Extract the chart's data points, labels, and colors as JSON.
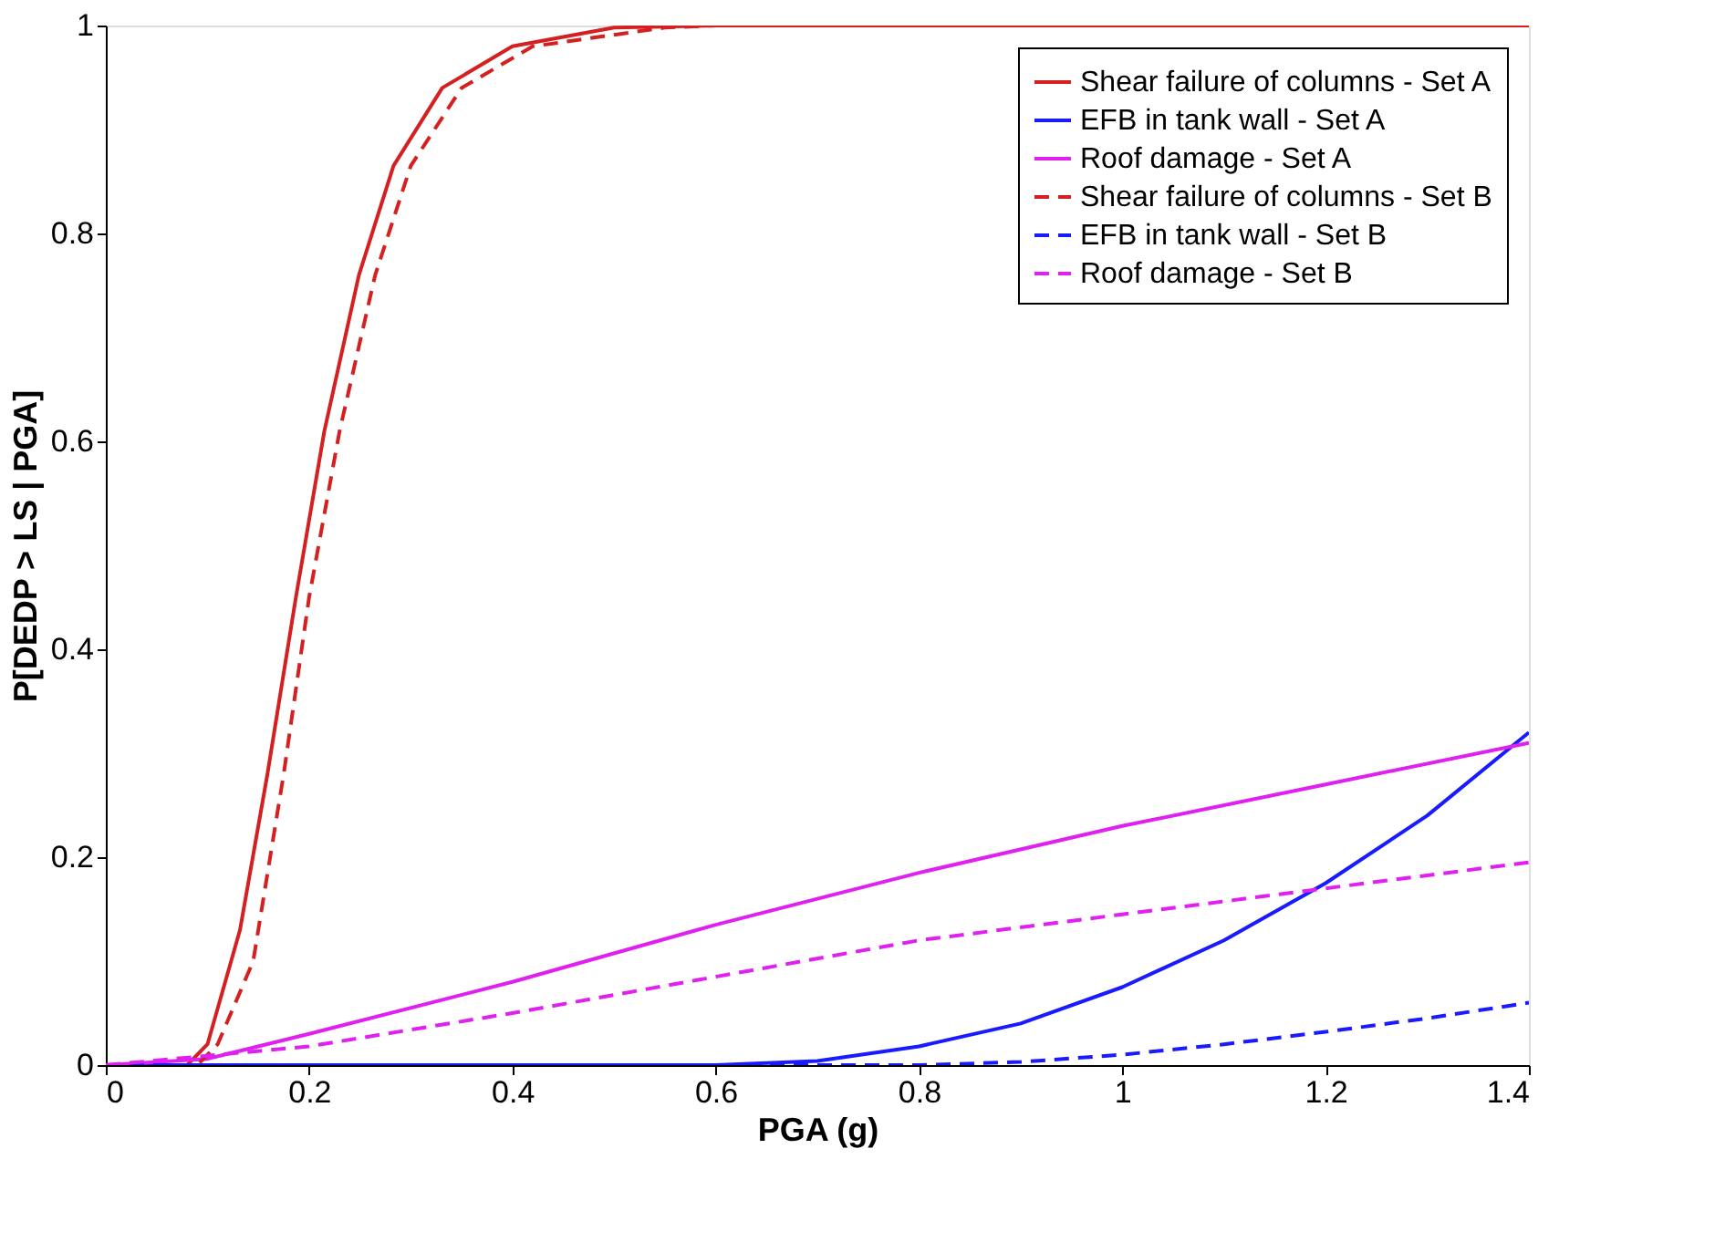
{
  "chart_data": {
    "type": "line",
    "xlabel": "PGA (g)",
    "ylabel": "P[DEDP > LS | PGA]",
    "xlim": [
      0,
      1.4
    ],
    "ylim": [
      0,
      1
    ],
    "xticks": [
      0,
      0.2,
      0.4,
      0.6,
      0.8,
      1,
      1.2,
      1.4
    ],
    "yticks": [
      0,
      0.2,
      0.4,
      0.6,
      0.8,
      1
    ],
    "grid": false,
    "legend": "top right",
    "series": [
      {
        "name": "Shear failure of columns - Set A",
        "color": "#d42020",
        "line_style": "solid",
        "x": [
          0,
          0.08,
          0.1,
          0.132,
          0.159,
          0.187,
          0.215,
          0.249,
          0.283,
          0.331,
          0.4,
          0.5,
          0.6,
          0.8,
          1.0,
          1.2,
          1.4
        ],
        "values": [
          0,
          0,
          0.02,
          0.13,
          0.28,
          0.45,
          0.61,
          0.76,
          0.865,
          0.94,
          0.98,
          0.998,
          1,
          1,
          1,
          1,
          1
        ]
      },
      {
        "name": "EFB in tank wall - Set A",
        "color": "#1a1aff",
        "line_style": "solid",
        "x": [
          0,
          0.2,
          0.4,
          0.6,
          0.7,
          0.8,
          0.9,
          1.0,
          1.1,
          1.2,
          1.3,
          1.4
        ],
        "values": [
          0,
          0,
          0,
          0,
          0.004,
          0.018,
          0.04,
          0.075,
          0.12,
          0.175,
          0.24,
          0.32
        ]
      },
      {
        "name": "Roof damage - Set A",
        "color": "#e020f0",
        "line_style": "solid",
        "x": [
          0,
          0.1,
          0.2,
          0.4,
          0.6,
          0.8,
          1.0,
          1.2,
          1.4
        ],
        "values": [
          0,
          0.006,
          0.03,
          0.08,
          0.135,
          0.185,
          0.23,
          0.27,
          0.31
        ]
      },
      {
        "name": "Shear failure of columns - Set B",
        "color": "#d42020",
        "line_style": "dashed",
        "x": [
          0,
          0.09,
          0.11,
          0.145,
          0.175,
          0.2,
          0.23,
          0.265,
          0.3,
          0.35,
          0.42,
          0.55,
          0.6,
          0.8,
          1.0,
          1.2,
          1.4
        ],
        "values": [
          0,
          0,
          0.02,
          0.1,
          0.28,
          0.45,
          0.61,
          0.76,
          0.865,
          0.94,
          0.98,
          0.998,
          1,
          1,
          1,
          1,
          1
        ]
      },
      {
        "name": "EFB in tank wall - Set B",
        "color": "#1a1aff",
        "line_style": "dashed",
        "x": [
          0,
          0.2,
          0.4,
          0.6,
          0.8,
          0.9,
          1.0,
          1.1,
          1.2,
          1.3,
          1.4
        ],
        "values": [
          0,
          0,
          0,
          0,
          0,
          0.003,
          0.01,
          0.02,
          0.032,
          0.045,
          0.06
        ]
      },
      {
        "name": "Roof damage - Set B",
        "color": "#e020f0",
        "line_style": "dashed",
        "x": [
          0,
          0.2,
          0.4,
          0.6,
          0.8,
          1.0,
          1.2,
          1.4
        ],
        "values": [
          0,
          0.018,
          0.05,
          0.085,
          0.12,
          0.145,
          0.17,
          0.195
        ]
      }
    ]
  }
}
